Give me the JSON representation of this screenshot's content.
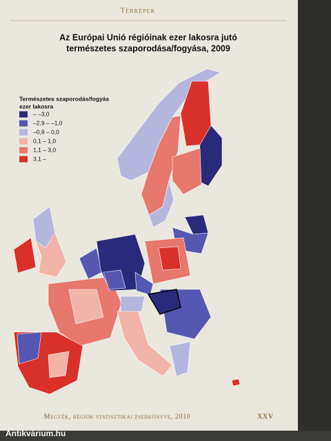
{
  "header": {
    "section": "Térképek"
  },
  "map": {
    "title": [
      "Az Európai Unió régióinak ezer lakosra jutó",
      "természetes szaporodása/fogyása, 2009"
    ],
    "legend": {
      "title": [
        "Természetes szaporodás/fogyás",
        "ezer lakosra"
      ],
      "items": [
        {
          "label": "– –3,0",
          "color": "#2b2a7a"
        },
        {
          "label": "–2,9 – –1,0",
          "color": "#5557b0"
        },
        {
          "label": "–0,9 – 0,0",
          "color": "#b5b6de"
        },
        {
          "label": "0,1 – 1,0",
          "color": "#f2b3a8"
        },
        {
          "label": "1,1 – 3,0",
          "color": "#e8776d"
        },
        {
          "label": "3,1 –",
          "color": "#d9302a"
        }
      ]
    }
  },
  "footer": {
    "book": "Megyék, régiók statisztikai zsebkönyve, 2010",
    "page": "XXV",
    "watermark": "Antikvárium.hu"
  }
}
